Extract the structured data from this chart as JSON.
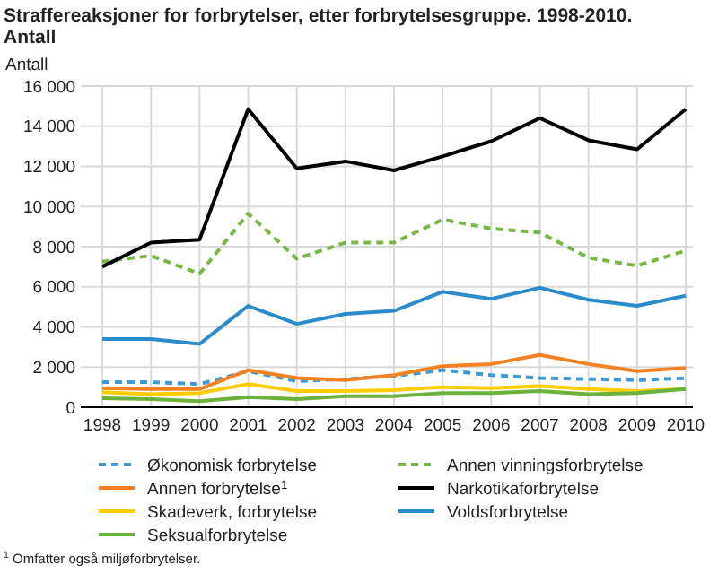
{
  "chart_data": {
    "type": "line",
    "title": "Straffereaksjoner for forbrytelser, etter forbrytelsesgruppe. 1998-2010.",
    "subtitle": "Antall",
    "ylabel": "Antall",
    "x": [
      1998,
      1999,
      2000,
      2001,
      2002,
      2003,
      2004,
      2005,
      2006,
      2007,
      2008,
      2009,
      2010
    ],
    "xlim": [
      1998,
      2010
    ],
    "xticks": [
      1998,
      1999,
      2000,
      2001,
      2002,
      2003,
      2004,
      2005,
      2006,
      2007,
      2008,
      2009,
      2010
    ],
    "ylim": [
      0,
      16000
    ],
    "yticks": [
      0,
      {
        "value": 2000,
        "label": "2 000"
      },
      {
        "value": 4000,
        "label": "4 000"
      },
      {
        "value": 6000,
        "label": "6 000"
      },
      {
        "value": 8000,
        "label": "8 000"
      },
      {
        "value": 10000,
        "label": "10 000"
      },
      {
        "value": 12000,
        "label": "12 000"
      },
      {
        "value": 14000,
        "label": "14 000"
      },
      {
        "value": 16000,
        "label": "16 000"
      }
    ],
    "grid": true,
    "legend": "bottom",
    "marker": "none",
    "series": [
      {
        "name": "Økonomisk forbrytelse",
        "color": "#3d9bd6",
        "line_style": "dashed",
        "values": [
          1250,
          1250,
          1150,
          1800,
          1300,
          1400,
          1550,
          1850,
          1600,
          1450,
          1400,
          1350,
          1450
        ]
      },
      {
        "name": "Annen vinningsforbrytelse",
        "color": "#77b843",
        "line_style": "dashed",
        "values": [
          7250,
          7550,
          6650,
          9650,
          7400,
          8200,
          8200,
          9350,
          8900,
          8700,
          7450,
          7050,
          7800
        ]
      },
      {
        "name": "Annen forbrytelse$^{1}$",
        "color": "#f58220",
        "line_style": "solid",
        "values": [
          950,
          900,
          900,
          1850,
          1450,
          1350,
          1600,
          2050,
          2150,
          2600,
          2150,
          1800,
          1950
        ]
      },
      {
        "name": "Narkotikaforbrytelse",
        "color": "#000000",
        "line_style": "solid",
        "values": [
          7000,
          8200,
          8350,
          14850,
          11900,
          12250,
          11800,
          12500,
          13250,
          14400,
          13300,
          12850,
          14850
        ]
      },
      {
        "name": "Skadeverk, forbrytelse",
        "color": "#ffcc00",
        "line_style": "solid",
        "values": [
          750,
          650,
          700,
          1150,
          800,
          800,
          850,
          1000,
          950,
          1050,
          900,
          800,
          900
        ]
      },
      {
        "name": "Voldsforbrytelse",
        "color": "#2a8ccb",
        "line_style": "solid",
        "values": [
          3400,
          3400,
          3150,
          5050,
          4150,
          4650,
          4800,
          5750,
          5400,
          5950,
          5350,
          5050,
          5550
        ]
      },
      {
        "name": "Seksualforbrytelse",
        "color": "#6ab23c",
        "line_style": "solid",
        "values": [
          450,
          400,
          300,
          500,
          400,
          550,
          550,
          700,
          700,
          800,
          650,
          700,
          900
        ]
      }
    ],
    "annotations": [
      "$^{1}$ Omfatter også miljøforbrytelser."
    ]
  }
}
